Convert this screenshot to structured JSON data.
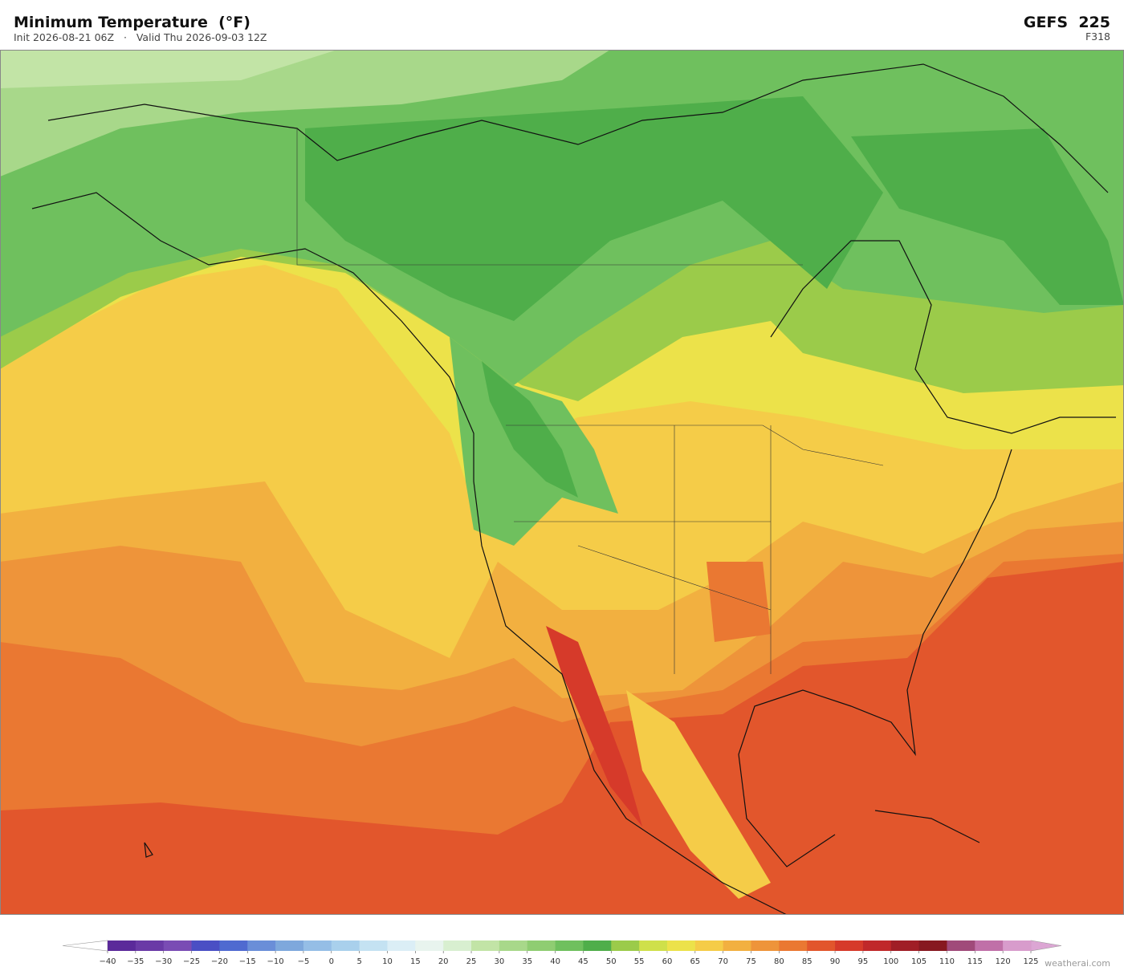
{
  "header": {
    "title": "Minimum Temperature  (°F)",
    "subtitle": "Init 2026-08-21 06Z   ·   Valid Thu 2026-09-03 12Z",
    "model": "GEFS  225",
    "forecast_hour": "F318"
  },
  "colorbar": {
    "lim": [
      -40,
      125
    ],
    "ticks": [
      {
        "value": -40,
        "label": "−40"
      },
      {
        "value": -35,
        "label": "−35"
      },
      {
        "value": -30,
        "label": "−30"
      },
      {
        "value": -25,
        "label": "−25"
      },
      {
        "value": -20,
        "label": "−20"
      },
      {
        "value": -15,
        "label": "−15"
      },
      {
        "value": -10,
        "label": "−10"
      },
      {
        "value": -5,
        "label": "−5"
      },
      0,
      5,
      10,
      15,
      20,
      25,
      30,
      35,
      40,
      45,
      50,
      55,
      60,
      65,
      70,
      75,
      80,
      85,
      90,
      95,
      100,
      105,
      110,
      115,
      120,
      125
    ],
    "colors": [
      "#5b2a9a",
      "#6a3aa6",
      "#7a4cb4",
      "#4a4fc4",
      "#4f6ad0",
      "#6a8ed8",
      "#7ea8dc",
      "#95bee6",
      "#a9d0ec",
      "#c4e2f2",
      "#dbeef6",
      "#e8f4ee",
      "#d8efd0",
      "#c2e4a6",
      "#a8d88a",
      "#8fcd72",
      "#6fc05e",
      "#4fae4a",
      "#9bcb4a",
      "#cfe04a",
      "#ece24a",
      "#f5cc48",
      "#f2b040",
      "#ee943a",
      "#ea7832",
      "#e2562c",
      "#d63a2a",
      "#c0282a",
      "#a01e26",
      "#871820",
      "#a04a7a",
      "#c070a8",
      "#d89ccc"
    ],
    "under_color": "#ffffff",
    "over_color": "#dca6d4"
  },
  "footer": {
    "watermark": "weatherai.com"
  }
}
